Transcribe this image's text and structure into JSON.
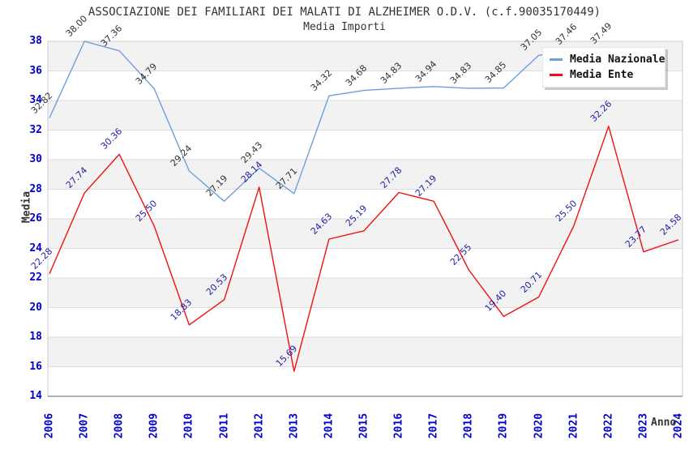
{
  "title": "ASSOCIAZIONE DEI FAMILIARI DEI MALATI DI ALZHEIMER O.D.V. (c.f.90035170449)",
  "subtitle": "Media Importi",
  "axes": {
    "y_label": "Media",
    "x_label": "Anno",
    "y_ticks": [
      38,
      36,
      34,
      32,
      30,
      28,
      26,
      24,
      22,
      20,
      18,
      16,
      14
    ],
    "tick_color": "#0000cc"
  },
  "legend": {
    "items": [
      {
        "label": "Media Nazionale",
        "color": "#6f9fd8"
      },
      {
        "label": "Media Ente",
        "color": "#ee1111"
      }
    ],
    "position": "top-right"
  },
  "colors": {
    "band_gray": "#f2f2f2",
    "band_white": "#ffffff",
    "gridline": "#dddddd",
    "plot_border": "#cccccc",
    "axis_line": "#808080",
    "nazionale_line": "#6f9fd8",
    "ente_line": "#ee1111",
    "nazionale_label": "#333333",
    "ente_label": "#2323a8"
  },
  "chart_data": {
    "type": "line",
    "title": "ASSOCIAZIONE DEI FAMILIARI DEI MALATI DI ALZHEIMER O.D.V. (c.f.90035170449)",
    "subtitle": "Media Importi",
    "xlabel": "Anno",
    "ylabel": "Media",
    "x": [
      2006,
      2007,
      2008,
      2009,
      2010,
      2011,
      2012,
      2013,
      2014,
      2015,
      2016,
      2017,
      2018,
      2019,
      2020,
      2021,
      2022,
      2023,
      2024
    ],
    "ylim": [
      14,
      38
    ],
    "y_tick_step": 2,
    "grid": "horizontal-bands",
    "legend_position": "top-right",
    "series": [
      {
        "name": "Media Nazionale",
        "color": "#6f9fd8",
        "label_color": "#333333",
        "values": [
          32.82,
          38.0,
          37.36,
          34.79,
          29.24,
          27.19,
          29.43,
          27.71,
          34.32,
          34.68,
          34.83,
          34.94,
          34.83,
          34.85,
          37.05,
          37.46,
          37.49,
          null,
          null
        ]
      },
      {
        "name": "Media Ente",
        "color": "#ee1111",
        "label_color": "#2323a8",
        "values": [
          22.28,
          27.74,
          30.36,
          25.5,
          18.83,
          20.53,
          28.14,
          15.69,
          24.63,
          25.19,
          27.78,
          27.19,
          22.55,
          19.4,
          20.71,
          25.5,
          32.26,
          23.77,
          24.58
        ]
      }
    ]
  }
}
